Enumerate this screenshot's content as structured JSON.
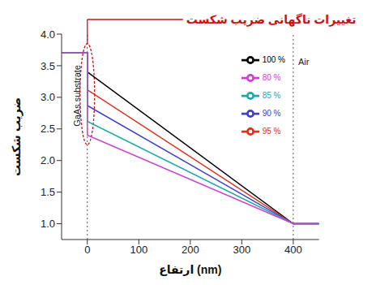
{
  "chart_data": {
    "type": "line",
    "annotation": "تغییرات ناگهانی ضریب شکست",
    "x_label": "ارتفاع (nm)",
    "y_label": "ضریب شکست",
    "xlim": [
      -50,
      450
    ],
    "ylim": [
      0.75,
      4.0
    ],
    "xticks": [
      0,
      100,
      200,
      300,
      400
    ],
    "yticks": [
      {
        "value": 1.0,
        "label": "1.0"
      },
      {
        "value": 1.5,
        "label": "1.5"
      },
      {
        "value": 2.0,
        "label": "2.0"
      },
      {
        "value": 2.5,
        "label": "2.5"
      },
      {
        "value": 3.0,
        "label": "3.0"
      },
      {
        "value": 3.5,
        "label": "3.5"
      },
      {
        "value": 4.0,
        "label": "4.0"
      }
    ],
    "regions": [
      {
        "text": "GaAs substrate",
        "x": 0
      },
      {
        "text": "Air",
        "x": 400
      }
    ],
    "legend": "upper right",
    "grid": false,
    "series": [
      {
        "name": "100 %",
        "color": "#000000",
        "x": [
          -50,
          0,
          0,
          400,
          450
        ],
        "values": [
          3.7,
          3.7,
          3.4,
          1.0,
          1.0
        ]
      },
      {
        "name": "95 %",
        "color": "#e0301e",
        "x": [
          -50,
          0,
          0,
          400,
          450
        ],
        "values": [
          3.7,
          3.7,
          3.12,
          1.0,
          1.0
        ]
      },
      {
        "name": "90 %",
        "color": "#4040c8",
        "x": [
          -50,
          0,
          0,
          400,
          450
        ],
        "values": [
          3.7,
          3.7,
          2.87,
          1.0,
          1.0
        ]
      },
      {
        "name": "85 %",
        "color": "#1fa8a8",
        "x": [
          -50,
          0,
          0,
          400,
          450
        ],
        "values": [
          3.7,
          3.7,
          2.62,
          1.0,
          1.0
        ]
      },
      {
        "name": "80 %",
        "color": "#d040d0",
        "x": [
          -50,
          0,
          0,
          400,
          450
        ],
        "values": [
          3.7,
          3.7,
          2.4,
          1.0,
          1.0
        ]
      }
    ]
  }
}
